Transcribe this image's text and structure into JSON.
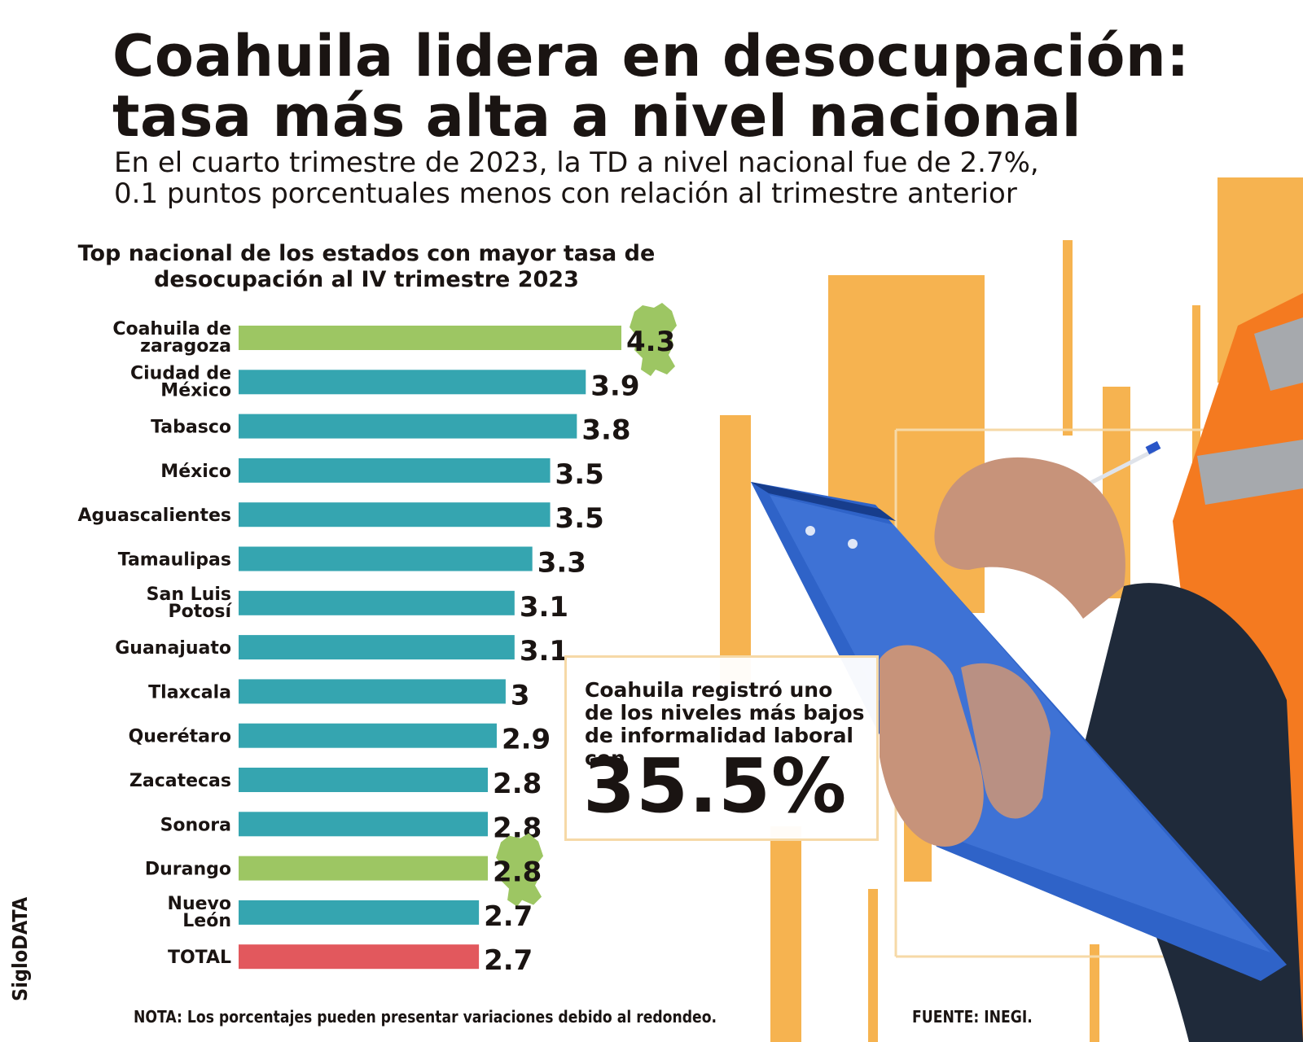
{
  "header": {
    "title_line1": "Coahuila lidera en desocupación:",
    "title_line2": "tasa más alta a nivel nacional",
    "subtitle_line1": "En el cuarto trimestre de 2023, la TD a nivel nacional fue de 2.7%,",
    "subtitle_line2": "0.1 puntos porcentuales menos con relación al trimestre anterior"
  },
  "chart_data": {
    "type": "bar",
    "orientation": "horizontal",
    "title": "Top nacional de los estados con mayor tasa de desocupación al IV trimestre 2023",
    "categories": [
      [
        "Coahuila de",
        "zaragoza"
      ],
      [
        "Ciudad de",
        "México"
      ],
      [
        "Tabasco"
      ],
      [
        "México"
      ],
      [
        "Aguascalientes"
      ],
      [
        "Tamaulipas"
      ],
      [
        "San Luis",
        "Potosí"
      ],
      [
        "Guanajuato"
      ],
      [
        "Tlaxcala"
      ],
      [
        "Querétaro"
      ],
      [
        "Zacatecas"
      ],
      [
        "Sonora"
      ],
      [
        "Durango"
      ],
      [
        "Nuevo",
        "León"
      ],
      [
        "TOTAL"
      ]
    ],
    "values": [
      4.3,
      3.9,
      3.8,
      3.5,
      3.5,
      3.3,
      3.1,
      3.1,
      3,
      2.9,
      2.8,
      2.8,
      2.8,
      2.7,
      2.7
    ],
    "value_labels": [
      "4.3",
      "3.9",
      "3.8",
      "3.5",
      "3.5",
      "3.3",
      "3.1",
      "3.1",
      "3",
      "2.9",
      "2.8",
      "2.8",
      "2.8",
      "2.7",
      "2.7"
    ],
    "bar_colors": [
      "#9dc663",
      "#35a5b0",
      "#35a5b0",
      "#35a5b0",
      "#35a5b0",
      "#35a5b0",
      "#35a5b0",
      "#35a5b0",
      "#35a5b0",
      "#35a5b0",
      "#35a5b0",
      "#35a5b0",
      "#9dc663",
      "#35a5b0",
      "#e2585d"
    ],
    "highlight_maps": [
      "Coahuila de zaragoza",
      "Durango"
    ],
    "xlim": [
      0,
      4.3
    ],
    "grid": false,
    "legend": "none"
  },
  "callout": {
    "text": "Coahuila registró uno de los niveles más bajos de informalidad laboral con",
    "value": "35.5%"
  },
  "footer": {
    "brand": "SigloDATA",
    "note": "NOTA: Los porcentajes pueden presentar variaciones debido al redondeo.",
    "source": "FUENTE: INEGI."
  },
  "colors": {
    "teal": "#35a5b0",
    "green": "#9dc663",
    "red": "#e2585d",
    "orange_decor": "#f6b350",
    "text": "#1a1412"
  },
  "photo": {
    "icons": [
      "worker-hand-icon",
      "clipboard-icon",
      "pen-icon",
      "safety-vest-icon"
    ]
  }
}
